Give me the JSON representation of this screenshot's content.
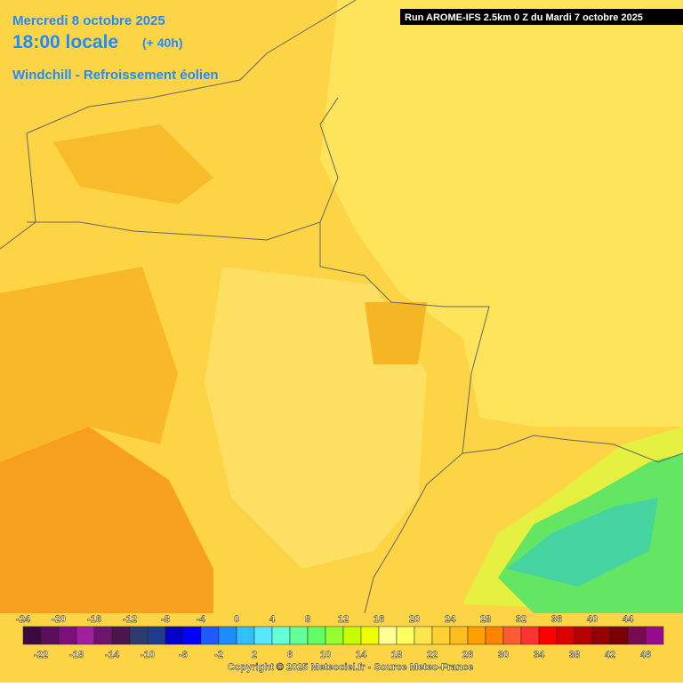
{
  "header": {
    "date": "Mercredi 8 octobre 2025",
    "time": "18:00 locale",
    "lead": "(+ 40h)",
    "parameter": "Windchill - Refroissement éolien",
    "run": "Run AROME-IFS 2.5km 0 Z du Mardi 7 octobre 2025"
  },
  "legend": {
    "values": [
      -24,
      -22,
      -20,
      -18,
      -16,
      -14,
      -12,
      -10,
      -8,
      -6,
      -4,
      -2,
      0,
      2,
      4,
      6,
      8,
      10,
      12,
      14,
      16,
      18,
      20,
      22,
      24,
      26,
      28,
      30,
      32,
      34,
      36,
      38,
      40,
      42,
      44,
      46
    ],
    "colors": [
      "#3c0a3c",
      "#5a0f5a",
      "#7d0f7d",
      "#a01ea0",
      "#6e146e",
      "#4b144b",
      "#2d3c6e",
      "#1e3c8c",
      "#0000c8",
      "#0000ff",
      "#1e5aff",
      "#1e8cff",
      "#32beff",
      "#5ae6ff",
      "#64ffd2",
      "#64ff96",
      "#64ff64",
      "#96ff32",
      "#c8ff00",
      "#f0ff00",
      "#ffff96",
      "#ffff64",
      "#ffe650",
      "#ffd232",
      "#ffbe1e",
      "#ffa000",
      "#ff8200",
      "#ff5a32",
      "#ff3232",
      "#ff0000",
      "#dc0000",
      "#b40000",
      "#960000",
      "#780000",
      "#780a50",
      "#960a8c"
    ]
  },
  "footer": {
    "copyright": "Copyright © 2025 Meteociel.fr - Source Meteo-France"
  }
}
